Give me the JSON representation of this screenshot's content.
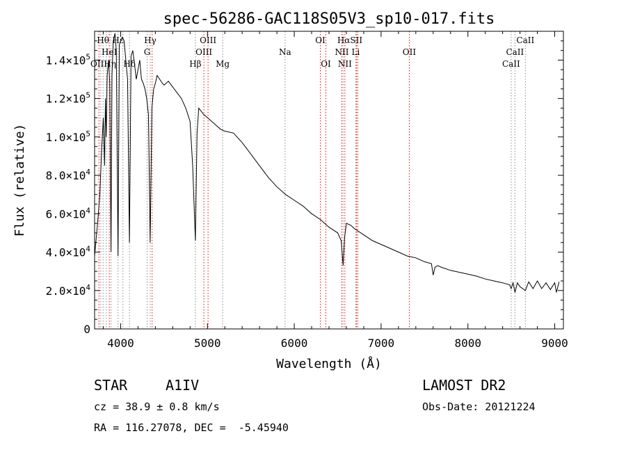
{
  "chart_data": {
    "type": "line",
    "title": "spec-56286-GAC118S05V3_sp10-017.fits",
    "xlabel": "Wavelength (Å)",
    "ylabel": "Flux (relative)",
    "xlim": [
      3700,
      9100
    ],
    "ylim": [
      0,
      155000
    ],
    "x_ticks": [
      {
        "value": 4000,
        "label": "4000"
      },
      {
        "value": 5000,
        "label": "5000"
      },
      {
        "value": 6000,
        "label": "6000"
      },
      {
        "value": 7000,
        "label": "7000"
      },
      {
        "value": 8000,
        "label": "8000"
      },
      {
        "value": 9000,
        "label": "9000"
      }
    ],
    "y_ticks": [
      {
        "value": 0,
        "mant": "0",
        "exp": ""
      },
      {
        "value": 20000,
        "mant": "2.0×10",
        "exp": "4"
      },
      {
        "value": 40000,
        "mant": "4.0×10",
        "exp": "4"
      },
      {
        "value": 60000,
        "mant": "6.0×10",
        "exp": "4"
      },
      {
        "value": 80000,
        "mant": "8.0×10",
        "exp": "4"
      },
      {
        "value": 100000,
        "mant": "1.0×10",
        "exp": "5"
      },
      {
        "value": 120000,
        "mant": "1.2×10",
        "exp": "5"
      },
      {
        "value": 140000,
        "mant": "1.4×10",
        "exp": "5"
      }
    ],
    "grid": false,
    "series": [
      {
        "color": "#000000",
        "x": [
          3700,
          3720,
          3740,
          3760,
          3780,
          3800,
          3815,
          3825,
          3835,
          3845,
          3860,
          3875,
          3889,
          3900,
          3915,
          3935,
          3950,
          3970,
          3985,
          4000,
          4020,
          4040,
          4060,
          4080,
          4101,
          4120,
          4140,
          4160,
          4180,
          4200,
          4220,
          4240,
          4260,
          4280,
          4300,
          4320,
          4340,
          4360,
          4380,
          4400,
          4420,
          4450,
          4480,
          4500,
          4550,
          4600,
          4650,
          4700,
          4750,
          4800,
          4830,
          4850,
          4861,
          4870,
          4880,
          4900,
          4950,
          5000,
          5050,
          5100,
          5150,
          5200,
          5300,
          5400,
          5500,
          5600,
          5700,
          5800,
          5850,
          5900,
          6000,
          6100,
          6200,
          6300,
          6400,
          6500,
          6540,
          6563,
          6580,
          6600,
          6650,
          6700,
          6800,
          6900,
          7000,
          7100,
          7200,
          7300,
          7400,
          7500,
          7580,
          7600,
          7620,
          7650,
          7700,
          7800,
          7900,
          8000,
          8100,
          8200,
          8300,
          8400,
          8480,
          8498,
          8520,
          8542,
          8570,
          8600,
          8662,
          8700,
          8750,
          8800,
          8850,
          8900,
          8950,
          9000,
          9020,
          9050
        ],
        "y": [
          38000,
          48000,
          58000,
          70000,
          92000,
          110000,
          85000,
          120000,
          100000,
          132000,
          140000,
          128000,
          40000,
          132000,
          150000,
          154000,
          145000,
          38000,
          148000,
          150000,
          152000,
          150000,
          140000,
          130000,
          45000,
          142000,
          145000,
          138000,
          130000,
          135000,
          140000,
          130000,
          128000,
          125000,
          120000,
          112000,
          45000,
          115000,
          125000,
          128000,
          132000,
          130000,
          128000,
          127000,
          129000,
          126000,
          123000,
          120000,
          115000,
          108000,
          85000,
          60000,
          46000,
          72000,
          102000,
          115000,
          112000,
          110000,
          108000,
          106000,
          104000,
          103000,
          102000,
          97000,
          91000,
          85000,
          79000,
          74000,
          72000,
          70000,
          67000,
          64000,
          60000,
          57000,
          53000,
          50000,
          46000,
          33000,
          48000,
          55000,
          54000,
          52000,
          49000,
          46000,
          44000,
          42000,
          40000,
          38000,
          37000,
          35000,
          34000,
          28000,
          32000,
          33000,
          32000,
          30500,
          29500,
          28500,
          27500,
          26000,
          25000,
          24000,
          23000,
          21000,
          24000,
          19000,
          24000,
          22000,
          20000,
          24500,
          21000,
          25000,
          21000,
          24000,
          20500,
          24000,
          19000,
          24500
        ]
      }
    ],
    "lines": [
      {
        "x": 3750,
        "color": "#ff0000"
      },
      {
        "x": 3771,
        "color": "#888888"
      },
      {
        "x": 3798,
        "color": "#888888"
      },
      {
        "x": 3835,
        "color": "#888888"
      },
      {
        "x": 3869,
        "color": "#ff0000"
      },
      {
        "x": 3889,
        "color": "#888888"
      },
      {
        "x": 3970,
        "color": "#888888"
      },
      {
        "x": 4026,
        "color": "#888888"
      },
      {
        "x": 4102,
        "color": "#888888"
      },
      {
        "x": 4305,
        "color": "#888888"
      },
      {
        "x": 4341,
        "color": "#888888"
      },
      {
        "x": 4363,
        "color": "#ff0000"
      },
      {
        "x": 4861,
        "color": "#888888"
      },
      {
        "x": 4959,
        "color": "#ff0000"
      },
      {
        "x": 5007,
        "color": "#ff0000"
      },
      {
        "x": 5175,
        "color": "#888888"
      },
      {
        "x": 5894,
        "color": "#888888"
      },
      {
        "x": 6300,
        "color": "#ff0000"
      },
      {
        "x": 6364,
        "color": "#ff0000"
      },
      {
        "x": 6548,
        "color": "#ff0000"
      },
      {
        "x": 6563,
        "color": "#888888"
      },
      {
        "x": 6583,
        "color": "#ff0000"
      },
      {
        "x": 6708,
        "color": "#888888"
      },
      {
        "x": 6716,
        "color": "#ff0000"
      },
      {
        "x": 6731,
        "color": "#ff0000"
      },
      {
        "x": 7325,
        "color": "#ff0000"
      },
      {
        "x": 8498,
        "color": "#888888"
      },
      {
        "x": 8542,
        "color": "#888888"
      },
      {
        "x": 8662,
        "color": "#888888"
      }
    ],
    "line_labels": [
      {
        "text": "Hθ",
        "x": 3797,
        "row": 0
      },
      {
        "text": "Hε",
        "x": 3970,
        "row": 0
      },
      {
        "text": "HeI",
        "x": 3870,
        "row": 1
      },
      {
        "text": "OIIHη",
        "x": 3800,
        "row": 2
      },
      {
        "text": "Hδ",
        "x": 4102,
        "row": 2
      },
      {
        "text": "Hγ",
        "x": 4341,
        "row": 0
      },
      {
        "text": "G",
        "x": 4305,
        "row": 1
      },
      {
        "text": "OIII",
        "x": 5007,
        "row": 0
      },
      {
        "text": "OIII",
        "x": 4959,
        "row": 1
      },
      {
        "text": "Hβ",
        "x": 4861,
        "row": 2
      },
      {
        "text": "Mg",
        "x": 5175,
        "row": 2
      },
      {
        "text": "Na",
        "x": 5894,
        "row": 1
      },
      {
        "text": "OI",
        "x": 6300,
        "row": 0
      },
      {
        "text": "OI",
        "x": 6364,
        "row": 2
      },
      {
        "text": "HαSII",
        "x": 6640,
        "row": 0
      },
      {
        "text": "NII",
        "x": 6548,
        "row": 1
      },
      {
        "text": "Li",
        "x": 6708,
        "row": 1
      },
      {
        "text": "NII",
        "x": 6583,
        "row": 2
      },
      {
        "text": "OII",
        "x": 7325,
        "row": 1
      },
      {
        "text": "CaII",
        "x": 8662,
        "row": 0
      },
      {
        "text": "CaII",
        "x": 8542,
        "row": 1
      },
      {
        "text": "CaII",
        "x": 8498,
        "row": 2
      }
    ]
  },
  "info": {
    "object_class": "STAR",
    "subclass": "A1IV",
    "survey": "LAMOST DR2",
    "cz": "cz = 38.9 ± 0.8 km/s",
    "obs_date": "Obs-Date: 20121224",
    "coords": "RA = 116.27078, DEC =  -5.45940"
  }
}
